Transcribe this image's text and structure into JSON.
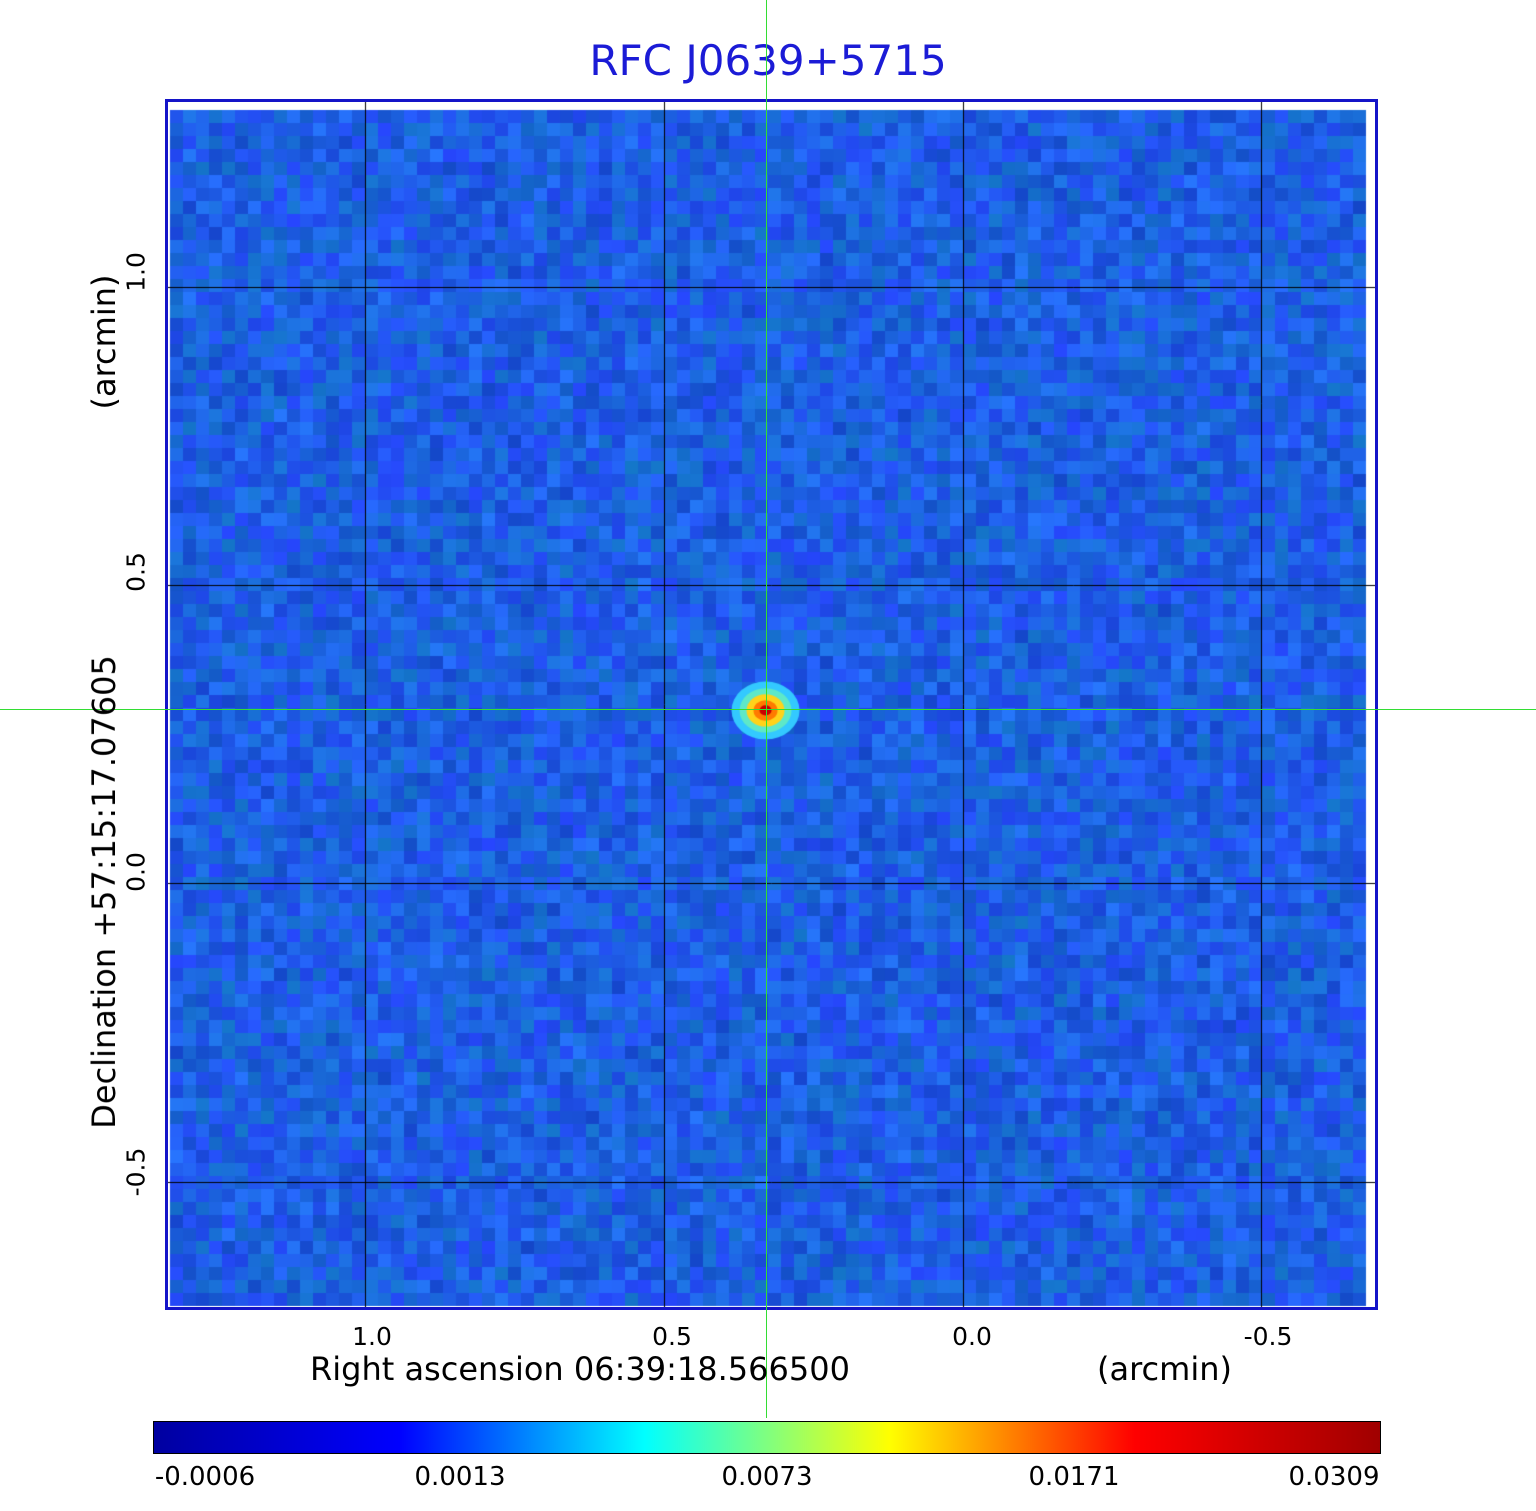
{
  "title": "RFC J0639+5715",
  "x_axis": {
    "label": "Right ascension  06:39:18.566500",
    "unit": "(arcmin)",
    "ticks": [
      "1.0",
      "0.5",
      "0.0",
      "-0.5"
    ],
    "tick_values": [
      1.0,
      0.5,
      0.0,
      -0.5
    ],
    "range": [
      1.33,
      -0.69
    ]
  },
  "y_axis": {
    "label": "Declination  +57:15:17.07605",
    "unit": "(arcmin)",
    "ticks": [
      "1.0",
      "0.5",
      "0.0",
      "-0.5"
    ],
    "tick_values": [
      1.0,
      0.5,
      0.0,
      -0.5
    ],
    "range": [
      -0.71,
      1.31
    ]
  },
  "colorbar": {
    "labels": [
      "-0.0006",
      "0.0013",
      "0.0073",
      "0.0171",
      "0.0309"
    ],
    "colors": [
      "#0000a0",
      "#0000ff",
      "#00ffff",
      "#ffff00",
      "#ff0000",
      "#a00000"
    ]
  },
  "source": {
    "x_arcmin": 0.33,
    "y_arcmin": 0.29
  },
  "colors": {
    "title": "#1b1bd6",
    "frame": "#1414c8",
    "background_map": "#1f5ef0",
    "crosshair": "#33dd33",
    "grid": "#000000"
  }
}
